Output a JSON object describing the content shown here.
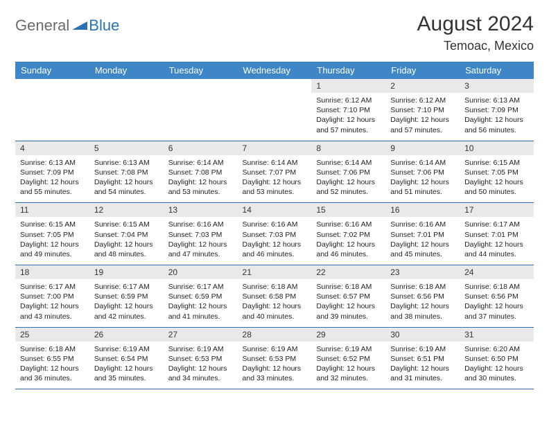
{
  "logo": {
    "text1": "General",
    "text2": "Blue"
  },
  "title": "August 2024",
  "location": "Temoac, Mexico",
  "colors": {
    "header_bg": "#3e86c6",
    "header_text": "#ffffff",
    "daynum_bg": "#e9e9e9",
    "rule": "#2a71b8",
    "logo_gray": "#6b6b6b",
    "logo_blue": "#2a71b8"
  },
  "day_headers": [
    "Sunday",
    "Monday",
    "Tuesday",
    "Wednesday",
    "Thursday",
    "Friday",
    "Saturday"
  ],
  "weeks": [
    [
      null,
      null,
      null,
      null,
      {
        "n": "1",
        "sunrise": "6:12 AM",
        "sunset": "7:10 PM",
        "daylight": "12 hours and 57 minutes."
      },
      {
        "n": "2",
        "sunrise": "6:12 AM",
        "sunset": "7:10 PM",
        "daylight": "12 hours and 57 minutes."
      },
      {
        "n": "3",
        "sunrise": "6:13 AM",
        "sunset": "7:09 PM",
        "daylight": "12 hours and 56 minutes."
      }
    ],
    [
      {
        "n": "4",
        "sunrise": "6:13 AM",
        "sunset": "7:09 PM",
        "daylight": "12 hours and 55 minutes."
      },
      {
        "n": "5",
        "sunrise": "6:13 AM",
        "sunset": "7:08 PM",
        "daylight": "12 hours and 54 minutes."
      },
      {
        "n": "6",
        "sunrise": "6:14 AM",
        "sunset": "7:08 PM",
        "daylight": "12 hours and 53 minutes."
      },
      {
        "n": "7",
        "sunrise": "6:14 AM",
        "sunset": "7:07 PM",
        "daylight": "12 hours and 53 minutes."
      },
      {
        "n": "8",
        "sunrise": "6:14 AM",
        "sunset": "7:06 PM",
        "daylight": "12 hours and 52 minutes."
      },
      {
        "n": "9",
        "sunrise": "6:14 AM",
        "sunset": "7:06 PM",
        "daylight": "12 hours and 51 minutes."
      },
      {
        "n": "10",
        "sunrise": "6:15 AM",
        "sunset": "7:05 PM",
        "daylight": "12 hours and 50 minutes."
      }
    ],
    [
      {
        "n": "11",
        "sunrise": "6:15 AM",
        "sunset": "7:05 PM",
        "daylight": "12 hours and 49 minutes."
      },
      {
        "n": "12",
        "sunrise": "6:15 AM",
        "sunset": "7:04 PM",
        "daylight": "12 hours and 48 minutes."
      },
      {
        "n": "13",
        "sunrise": "6:16 AM",
        "sunset": "7:03 PM",
        "daylight": "12 hours and 47 minutes."
      },
      {
        "n": "14",
        "sunrise": "6:16 AM",
        "sunset": "7:03 PM",
        "daylight": "12 hours and 46 minutes."
      },
      {
        "n": "15",
        "sunrise": "6:16 AM",
        "sunset": "7:02 PM",
        "daylight": "12 hours and 46 minutes."
      },
      {
        "n": "16",
        "sunrise": "6:16 AM",
        "sunset": "7:01 PM",
        "daylight": "12 hours and 45 minutes."
      },
      {
        "n": "17",
        "sunrise": "6:17 AM",
        "sunset": "7:01 PM",
        "daylight": "12 hours and 44 minutes."
      }
    ],
    [
      {
        "n": "18",
        "sunrise": "6:17 AM",
        "sunset": "7:00 PM",
        "daylight": "12 hours and 43 minutes."
      },
      {
        "n": "19",
        "sunrise": "6:17 AM",
        "sunset": "6:59 PM",
        "daylight": "12 hours and 42 minutes."
      },
      {
        "n": "20",
        "sunrise": "6:17 AM",
        "sunset": "6:59 PM",
        "daylight": "12 hours and 41 minutes."
      },
      {
        "n": "21",
        "sunrise": "6:18 AM",
        "sunset": "6:58 PM",
        "daylight": "12 hours and 40 minutes."
      },
      {
        "n": "22",
        "sunrise": "6:18 AM",
        "sunset": "6:57 PM",
        "daylight": "12 hours and 39 minutes."
      },
      {
        "n": "23",
        "sunrise": "6:18 AM",
        "sunset": "6:56 PM",
        "daylight": "12 hours and 38 minutes."
      },
      {
        "n": "24",
        "sunrise": "6:18 AM",
        "sunset": "6:56 PM",
        "daylight": "12 hours and 37 minutes."
      }
    ],
    [
      {
        "n": "25",
        "sunrise": "6:18 AM",
        "sunset": "6:55 PM",
        "daylight": "12 hours and 36 minutes."
      },
      {
        "n": "26",
        "sunrise": "6:19 AM",
        "sunset": "6:54 PM",
        "daylight": "12 hours and 35 minutes."
      },
      {
        "n": "27",
        "sunrise": "6:19 AM",
        "sunset": "6:53 PM",
        "daylight": "12 hours and 34 minutes."
      },
      {
        "n": "28",
        "sunrise": "6:19 AM",
        "sunset": "6:53 PM",
        "daylight": "12 hours and 33 minutes."
      },
      {
        "n": "29",
        "sunrise": "6:19 AM",
        "sunset": "6:52 PM",
        "daylight": "12 hours and 32 minutes."
      },
      {
        "n": "30",
        "sunrise": "6:19 AM",
        "sunset": "6:51 PM",
        "daylight": "12 hours and 31 minutes."
      },
      {
        "n": "31",
        "sunrise": "6:20 AM",
        "sunset": "6:50 PM",
        "daylight": "12 hours and 30 minutes."
      }
    ]
  ],
  "labels": {
    "sunrise": "Sunrise:",
    "sunset": "Sunset:",
    "daylight": "Daylight:"
  }
}
